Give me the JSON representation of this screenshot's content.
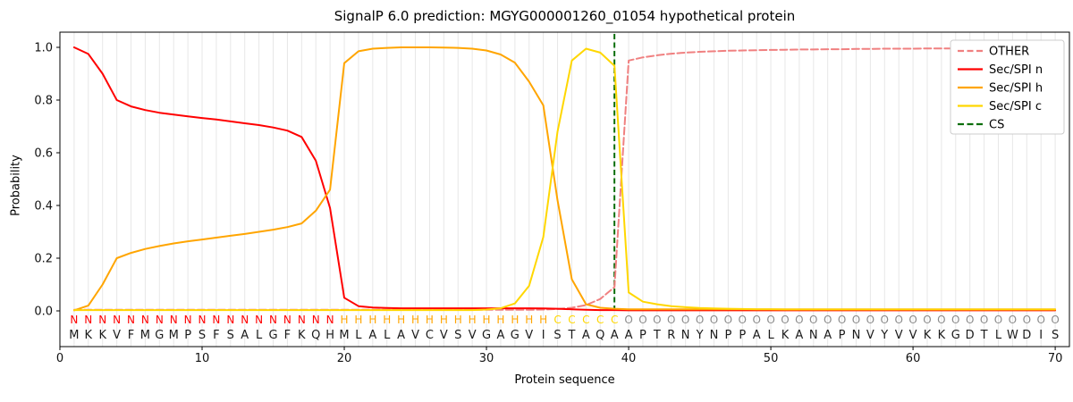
{
  "chart_data": {
    "type": "line",
    "title": "SignalP 6.0 prediction: MGYG000001260_01054 hypothetical protein",
    "xlabel": "Protein sequence",
    "ylabel": "Probability",
    "xticks": [
      0,
      10,
      20,
      30,
      40,
      50,
      60,
      70
    ],
    "yticks": [
      "0.0",
      "0.2",
      "0.4",
      "0.6",
      "0.8",
      "1.0"
    ],
    "xlim": [
      0,
      71
    ],
    "ylim": [
      0,
      1.0
    ],
    "grid": "vertical line per residue, light gray",
    "legend_position": "upper right",
    "residue_start": 1,
    "sequence": "MKKVFMGMPSFSALGFKQHMLALAVCVSVGAGVISTAQAAPTRNYNPPALKANAPNVYVVKKGDTLWDIS",
    "region_labels": "NNNNNNNNNNNNNNNNNNNHHHHHHHHHHHHHHHCCCCCOOOOOOOOOOOOOOOOOOOOOOOOOOOOOOO",
    "region_colors": {
      "N": "#ff0000",
      "H": "#ffa500",
      "C": "#ffd700",
      "O": "#8c8c8c"
    },
    "sequence_color": "#1a1a1a",
    "series": [
      {
        "name": "OTHER",
        "color": "#f08080",
        "style": "dashed",
        "values": [
          0.004,
          0.004,
          0.004,
          0.004,
          0.004,
          0.004,
          0.004,
          0.004,
          0.004,
          0.004,
          0.004,
          0.004,
          0.004,
          0.004,
          0.004,
          0.004,
          0.004,
          0.004,
          0.004,
          0.004,
          0.004,
          0.004,
          0.004,
          0.004,
          0.004,
          0.004,
          0.004,
          0.004,
          0.004,
          0.004,
          0.004,
          0.004,
          0.004,
          0.005,
          0.007,
          0.012,
          0.022,
          0.045,
          0.09,
          0.95,
          0.962,
          0.97,
          0.976,
          0.98,
          0.983,
          0.985,
          0.987,
          0.988,
          0.989,
          0.99,
          0.991,
          0.992,
          0.992,
          0.993,
          0.993,
          0.994,
          0.994,
          0.995,
          0.995,
          0.995,
          0.996,
          0.996,
          0.996,
          0.997,
          0.997,
          0.997,
          0.997,
          0.997,
          0.997,
          0.997
        ]
      },
      {
        "name": "Sec/SPI n",
        "color": "#ff0000",
        "style": "solid",
        "values": [
          1.0,
          0.975,
          0.9,
          0.8,
          0.776,
          0.762,
          0.752,
          0.745,
          0.738,
          0.732,
          0.726,
          0.719,
          0.712,
          0.705,
          0.696,
          0.684,
          0.66,
          0.57,
          0.39,
          0.05,
          0.018,
          0.013,
          0.011,
          0.01,
          0.01,
          0.01,
          0.01,
          0.01,
          0.01,
          0.01,
          0.01,
          0.01,
          0.01,
          0.009,
          0.008,
          0.006,
          0.004,
          0.003,
          0.003,
          0.002,
          0.002,
          0.002,
          0.002,
          0.002,
          0.002,
          0.002,
          0.002,
          0.002,
          0.002,
          0.002,
          0.002,
          0.002,
          0.002,
          0.002,
          0.002,
          0.002,
          0.002,
          0.002,
          0.002,
          0.002,
          0.002,
          0.002,
          0.002,
          0.002,
          0.002,
          0.002,
          0.002,
          0.002,
          0.002,
          0.002
        ]
      },
      {
        "name": "Sec/SPI h",
        "color": "#ffa500",
        "style": "solid",
        "values": [
          0.002,
          0.02,
          0.1,
          0.2,
          0.22,
          0.235,
          0.246,
          0.256,
          0.264,
          0.271,
          0.278,
          0.285,
          0.292,
          0.3,
          0.308,
          0.318,
          0.332,
          0.38,
          0.46,
          0.94,
          0.985,
          0.995,
          0.998,
          1.0,
          1.0,
          1.0,
          0.999,
          0.998,
          0.995,
          0.988,
          0.973,
          0.942,
          0.87,
          0.78,
          0.42,
          0.12,
          0.025,
          0.012,
          0.008,
          0.006,
          0.006,
          0.006,
          0.006,
          0.006,
          0.006,
          0.006,
          0.006,
          0.006,
          0.006,
          0.006,
          0.006,
          0.006,
          0.006,
          0.006,
          0.006,
          0.006,
          0.006,
          0.006,
          0.006,
          0.006,
          0.006,
          0.006,
          0.006,
          0.006,
          0.006,
          0.006,
          0.006,
          0.006,
          0.006,
          0.006
        ]
      },
      {
        "name": "Sec/SPI c",
        "color": "#ffd700",
        "style": "solid",
        "values": [
          0.003,
          0.003,
          0.003,
          0.003,
          0.003,
          0.003,
          0.003,
          0.003,
          0.003,
          0.003,
          0.003,
          0.003,
          0.003,
          0.003,
          0.003,
          0.003,
          0.003,
          0.003,
          0.003,
          0.003,
          0.003,
          0.003,
          0.003,
          0.003,
          0.003,
          0.003,
          0.003,
          0.003,
          0.003,
          0.005,
          0.01,
          0.028,
          0.095,
          0.28,
          0.68,
          0.95,
          0.995,
          0.98,
          0.93,
          0.07,
          0.035,
          0.025,
          0.018,
          0.014,
          0.011,
          0.009,
          0.008,
          0.007,
          0.006,
          0.006,
          0.005,
          0.005,
          0.005,
          0.005,
          0.005,
          0.005,
          0.005,
          0.005,
          0.005,
          0.005,
          0.005,
          0.005,
          0.005,
          0.005,
          0.005,
          0.005,
          0.005,
          0.005,
          0.005,
          0.005
        ]
      }
    ],
    "cs_line": {
      "label": "CS",
      "position": 39,
      "color": "#0b6e0b",
      "style": "dashed"
    },
    "legend_labels": [
      "OTHER",
      "Sec/SPI n",
      "Sec/SPI h",
      "Sec/SPI c",
      "CS"
    ]
  }
}
